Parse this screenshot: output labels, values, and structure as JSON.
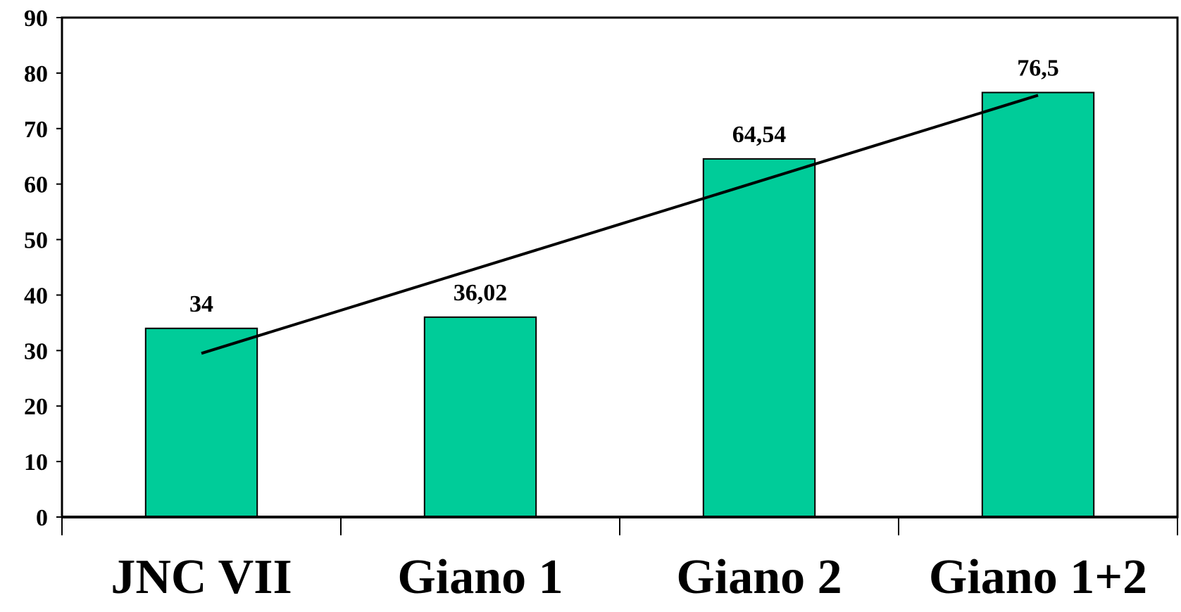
{
  "chart_data": {
    "type": "bar",
    "title": "",
    "xlabel": "",
    "ylabel": "",
    "categories": [
      "JNC VII",
      "Giano 1",
      "Giano 2",
      "Giano 1+2"
    ],
    "values": [
      34,
      36.02,
      64.54,
      76.5
    ],
    "value_labels": [
      "34",
      "36,02",
      "64,54",
      "76,5"
    ],
    "ylim": [
      0,
      90
    ],
    "yticks": [
      0,
      10,
      20,
      30,
      40,
      50,
      60,
      70,
      80,
      90
    ],
    "ytick_labels": [
      "0",
      "10",
      "20",
      "30",
      "40",
      "50",
      "60",
      "70",
      "80",
      "90"
    ],
    "trendline": {
      "type": "linear",
      "start_value": 29.5,
      "end_value": 76
    },
    "grid": false,
    "legend": "none",
    "colors": {
      "bar": "#00CC99",
      "bar_outline": "#000000",
      "axis": "#000000",
      "trendline": "#000000",
      "background": "#FFFFFF"
    }
  }
}
